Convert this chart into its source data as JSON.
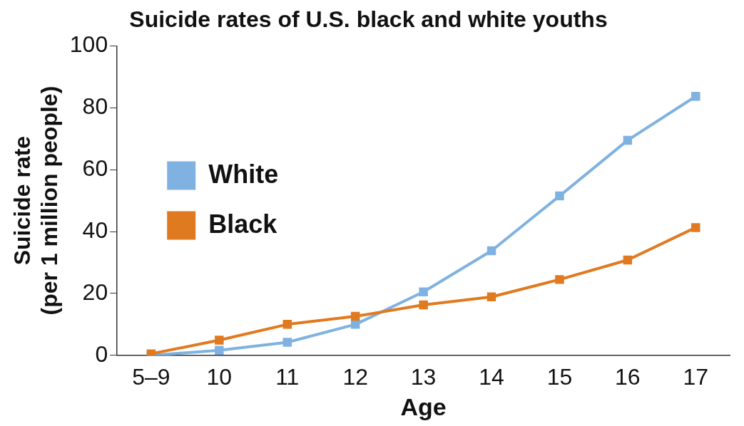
{
  "chart_data": {
    "type": "line",
    "title": "Suicide rates of U.S. black and white youths",
    "xlabel": "Age",
    "ylabel": "Suicide rate\n(per 1 million people)",
    "categories": [
      "5–9",
      "10",
      "11",
      "12",
      "13",
      "14",
      "15",
      "16",
      "17"
    ],
    "series": [
      {
        "name": "White",
        "color": "#7fb2e0",
        "values": [
          0,
          1.6,
          4.2,
          10,
          20.5,
          33.8,
          51.5,
          69.5,
          83.7
        ]
      },
      {
        "name": "Black",
        "color": "#e07a20",
        "values": [
          0.5,
          4.9,
          10,
          12.6,
          16.3,
          18.9,
          24.5,
          30.8,
          41.3
        ]
      }
    ],
    "ylim": [
      0,
      100
    ],
    "yticks": [
      0,
      20,
      40,
      60,
      80,
      100
    ],
    "grid": false,
    "legend": "center left",
    "marker": "square",
    "line_style": "solid"
  }
}
